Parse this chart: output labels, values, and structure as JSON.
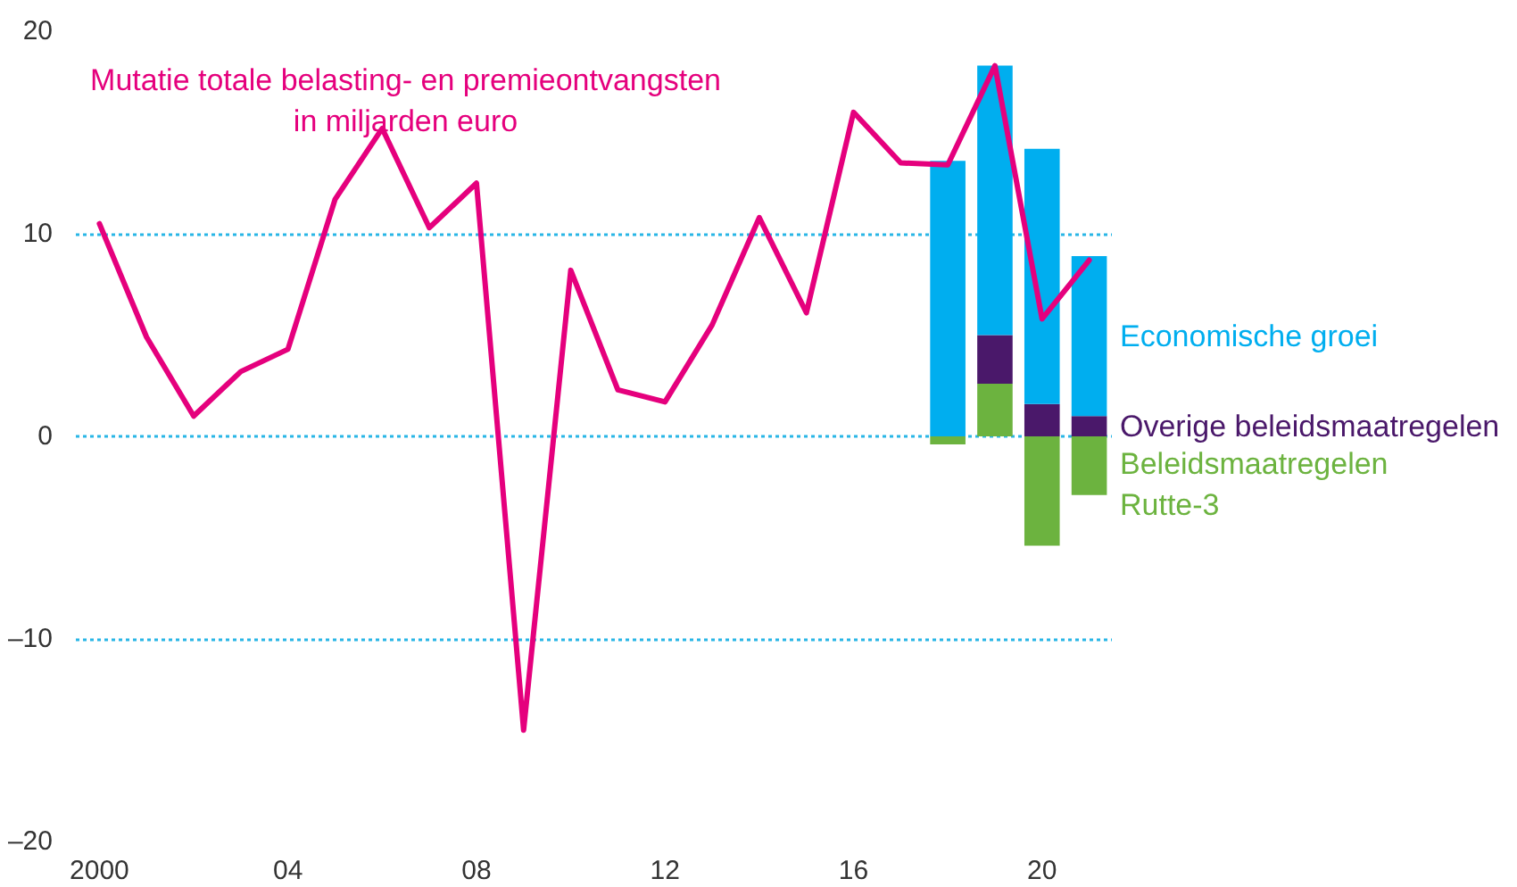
{
  "chart_data": {
    "type": "line",
    "stacked": true,
    "grid": "y",
    "x": [
      2018,
      2019,
      2020,
      2021
    ],
    "xlim": [
      1999.5,
      2021.5
    ],
    "xticks": [
      2000,
      {
        "value": 2004,
        "label": "04"
      },
      {
        "value": 2008,
        "label": "08"
      },
      {
        "value": 2012,
        "label": "12"
      },
      {
        "value": 2016,
        "label": "16"
      },
      {
        "value": 2020,
        "label": "20"
      }
    ],
    "ylim": [
      -20,
      20
    ],
    "yticks": [
      20,
      10,
      0,
      {
        "value": -10,
        "label": "–10"
      },
      {
        "value": -20,
        "label": "–20"
      }
    ],
    "series": [
      {
        "name": "Mutatie totale belasting- en premieontvangsten\nin miljarden euro",
        "color": "#e5007d",
        "x": [
          2000,
          2001,
          2002,
          2003,
          2004,
          2005,
          2006,
          2007,
          2008,
          2009,
          2010,
          2011,
          2012,
          2013,
          2014,
          2015,
          2016,
          2017,
          2018,
          2019,
          2020,
          2021
        ],
        "values": [
          10.5,
          4.9,
          1.0,
          3.2,
          4.3,
          11.7,
          15.2,
          10.3,
          12.5,
          -14.5,
          8.2,
          2.3,
          1.7,
          5.5,
          10.8,
          6.1,
          16.0,
          13.5,
          13.4,
          18.3,
          5.8,
          8.7
        ]
      },
      {
        "type": "bar",
        "name": "Beleidsmaatregelen\nRutte-3",
        "color": "#6cb33f",
        "values": [
          -0.4,
          2.6,
          -5.4,
          -2.9
        ]
      },
      {
        "type": "bar",
        "name": "Overige beleidsmaatregelen",
        "color": "#4a186a",
        "values": [
          null,
          2.4,
          1.6,
          1.0
        ]
      },
      {
        "type": "bar",
        "name": "Economische groei",
        "color": "#00aeef",
        "values": [
          13.6,
          13.3,
          12.6,
          7.9
        ]
      }
    ]
  }
}
